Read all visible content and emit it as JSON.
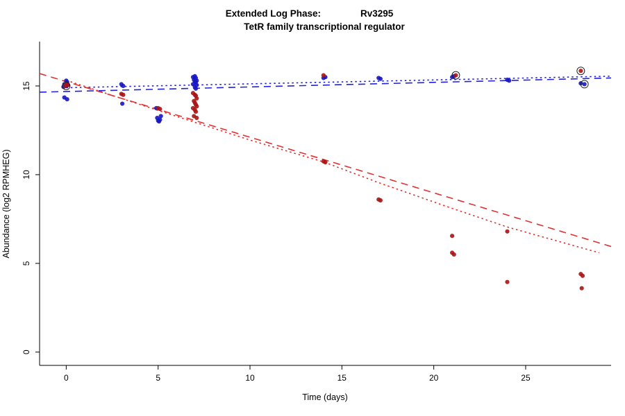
{
  "chart_data": {
    "type": "scatter",
    "title": "Extended Log Phase:  Rv3295",
    "title_parts": {
      "left": "Extended Log Phase:",
      "gene": "Rv3295"
    },
    "subtitle": "TetR family transcriptional regulator",
    "xlabel": "Time (days)",
    "ylabel": "Abundance (log2 RPMHEG)",
    "xlim": [
      -1.45,
      29.65
    ],
    "ylim": [
      -0.75,
      17.5
    ],
    "xticks": [
      0,
      5,
      10,
      15,
      20,
      25
    ],
    "yticks": [
      0,
      5,
      10,
      15
    ],
    "grid": false,
    "legend": "none",
    "colors": {
      "blue_points": "#1616c2",
      "red_points": "#a81414",
      "blue_line": "#2020dd",
      "red_line": "#e03030",
      "outlier_ring": "#222222"
    },
    "series": [
      {
        "name": "blue",
        "color_key": "blue_points",
        "points": [
          [
            -0.15,
            14.95
          ],
          [
            -0.1,
            15.1
          ],
          [
            0,
            15.3
          ],
          [
            0.05,
            15.22
          ],
          [
            0.1,
            15.05
          ],
          [
            0,
            15.0
          ],
          [
            -0.1,
            14.35
          ],
          [
            0.05,
            14.25
          ],
          [
            3,
            15.1
          ],
          [
            3.1,
            15.0
          ],
          [
            3.05,
            14.0
          ],
          [
            4.9,
            13.75
          ],
          [
            4.95,
            13.2
          ],
          [
            5,
            13.05
          ],
          [
            5.05,
            13.0
          ],
          [
            5.1,
            13.1
          ],
          [
            5.15,
            13.3
          ],
          [
            6.9,
            15.5
          ],
          [
            7,
            15.55
          ],
          [
            7.05,
            15.45
          ],
          [
            6.95,
            15.35
          ],
          [
            7.1,
            15.3
          ],
          [
            7,
            15.25
          ],
          [
            7.05,
            15.2
          ],
          [
            6.9,
            15.1
          ],
          [
            7.1,
            15.05
          ],
          [
            7,
            14.95
          ],
          [
            7.05,
            14.85
          ],
          [
            14,
            15.45
          ],
          [
            14.1,
            15.5
          ],
          [
            17,
            15.45
          ],
          [
            17.1,
            15.4
          ],
          [
            21,
            15.5
          ],
          [
            21.1,
            15.55
          ],
          [
            24,
            15.35
          ],
          [
            24.1,
            15.3
          ],
          [
            28,
            15.15
          ],
          [
            28.2,
            15.1
          ]
        ]
      },
      {
        "name": "red",
        "color_key": "red_points",
        "points": [
          [
            0,
            15.1
          ],
          [
            0.1,
            15.05
          ],
          [
            -0.05,
            15.0
          ],
          [
            3,
            14.55
          ],
          [
            3.1,
            14.5
          ],
          [
            5,
            13.75
          ],
          [
            5.1,
            13.7
          ],
          [
            6.9,
            14.6
          ],
          [
            7,
            14.5
          ],
          [
            7.05,
            14.45
          ],
          [
            7.1,
            14.3
          ],
          [
            6.95,
            14.15
          ],
          [
            7,
            14.05
          ],
          [
            7.05,
            13.95
          ],
          [
            7.1,
            13.85
          ],
          [
            6.9,
            13.75
          ],
          [
            7,
            13.65
          ],
          [
            7.05,
            13.55
          ],
          [
            6.95,
            13.3
          ],
          [
            7.1,
            13.2
          ],
          [
            14,
            15.6
          ],
          [
            14,
            10.75
          ],
          [
            14.1,
            10.7
          ],
          [
            17,
            8.6
          ],
          [
            17.1,
            8.55
          ],
          [
            21,
            6.55
          ],
          [
            21,
            5.6
          ],
          [
            21.1,
            5.5
          ],
          [
            21.2,
            15.6
          ],
          [
            24,
            6.8
          ],
          [
            24,
            3.95
          ],
          [
            28,
            15.85
          ],
          [
            28,
            4.4
          ],
          [
            28.1,
            4.3
          ],
          [
            28.05,
            3.6
          ]
        ]
      }
    ],
    "outlier_circles": [
      [
        0,
        15.0
      ],
      [
        21.2,
        15.6
      ],
      [
        28,
        15.85
      ],
      [
        28.2,
        15.1
      ]
    ],
    "fit_lines": [
      {
        "series": "blue",
        "style": "dashed",
        "x": [
          -1.45,
          29.65
        ],
        "y": [
          14.65,
          15.45
        ]
      },
      {
        "series": "blue",
        "style": "dotted",
        "x": [
          0,
          29.65
        ],
        "y": [
          14.9,
          15.55
        ]
      },
      {
        "series": "red",
        "style": "dashed",
        "x": [
          -1.45,
          29.65
        ],
        "y": [
          15.7,
          5.95
        ]
      },
      {
        "series": "red",
        "style": "dotted",
        "x": [
          0,
          5,
          10,
          14,
          17,
          21,
          24,
          29
        ],
        "y": [
          15.32,
          13.62,
          11.95,
          10.72,
          9.55,
          8.1,
          7.05,
          5.6
        ]
      }
    ]
  }
}
